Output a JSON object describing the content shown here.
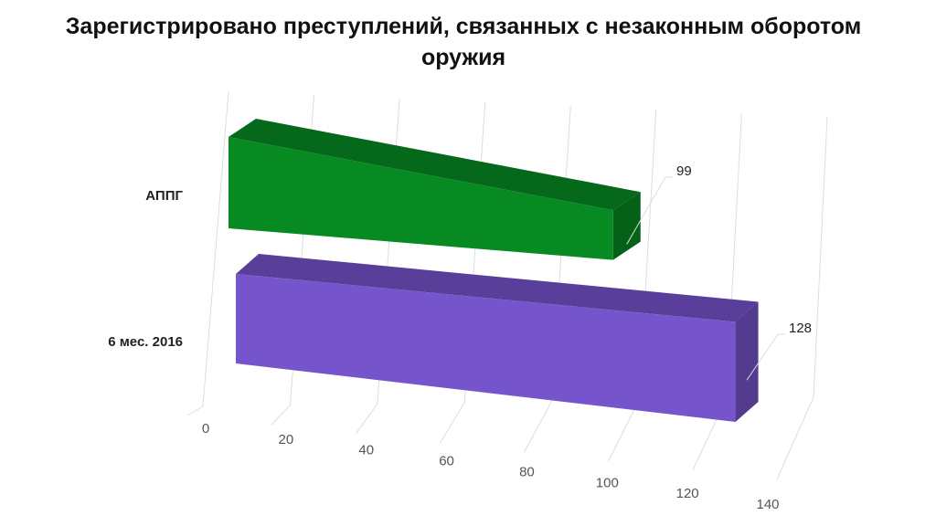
{
  "chart_data": {
    "type": "bar3d",
    "orientation": "horizontal",
    "title": "Зарегистрировано преступлений, связанных с незаконным оборотом оружия",
    "categories": [
      "АППГ",
      "6 мес. 2016"
    ],
    "values": [
      99,
      128
    ],
    "colors": [
      "#078a22",
      "#7654cc"
    ],
    "xlim": [
      0,
      140
    ],
    "xticks": [
      0,
      20,
      40,
      60,
      80,
      100,
      120,
      140
    ],
    "grid": true
  }
}
